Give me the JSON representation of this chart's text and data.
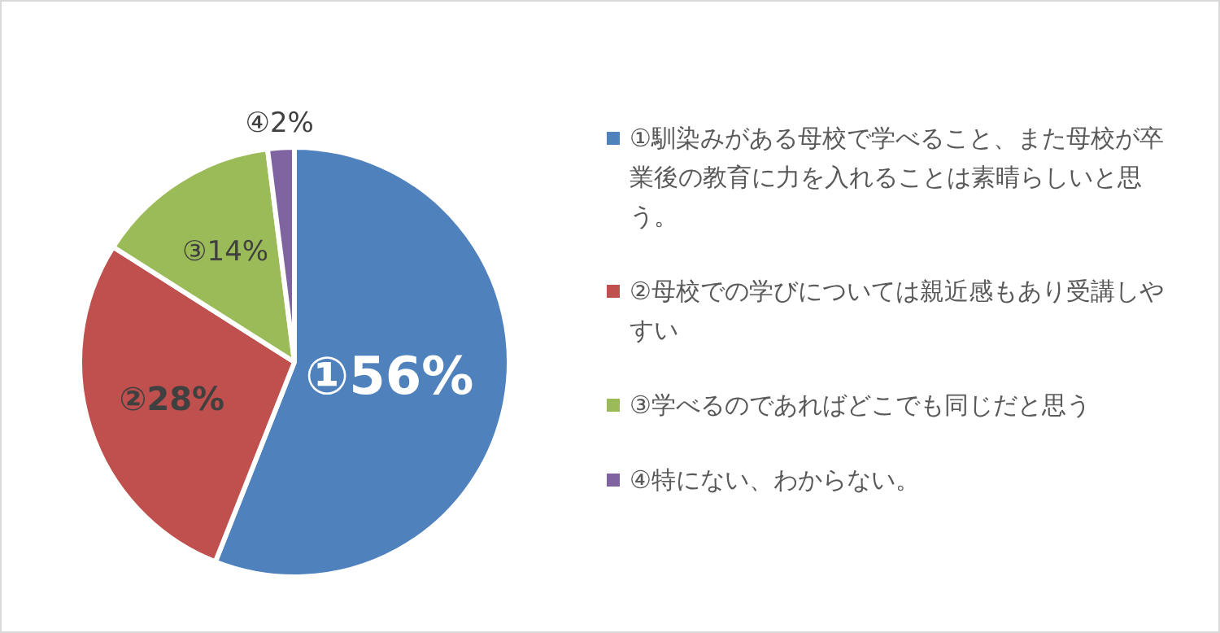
{
  "chart_data": {
    "type": "pie",
    "categories": [
      "①馴染みがある母校で学べること、また母校が卒業後の教育に力を入れることは素晴らしいと思う。",
      "②母校での学びについては親近感もあり受講しやすい",
      "③学べるのであればどこでも同じだと思う",
      "④特にない、わからない。"
    ],
    "values": [
      56,
      28,
      14,
      2
    ],
    "colors": [
      "#4f81bd",
      "#c0504d",
      "#9bbb59",
      "#8064a2"
    ],
    "value_labels": [
      "①56%",
      "②28%",
      "③14%",
      "④2%"
    ],
    "legend": "right"
  }
}
